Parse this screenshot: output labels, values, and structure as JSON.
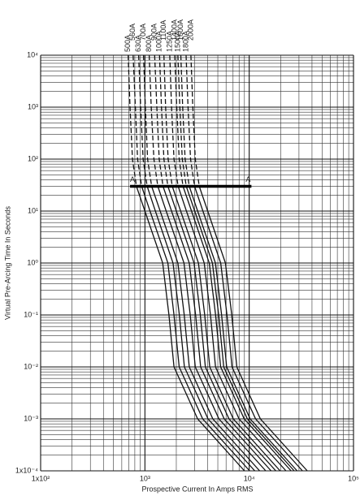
{
  "chart_data": {
    "type": "line",
    "x_label": "Prospective Current In Amps RMS",
    "y_label": "Virtual Pre-Arcing Time In Seconds",
    "x_log": true,
    "y_log": true,
    "grid": "major-minor",
    "color": "#111111",
    "xlim": [
      100,
      100000
    ],
    "xticks": [
      {
        "value": 100,
        "label": "1x10²"
      },
      {
        "value": 1000,
        "label": "10³"
      },
      {
        "value": 10000,
        "label": "10⁴"
      },
      {
        "value": 100000,
        "label": "10⁵"
      }
    ],
    "ylim": [
      0.0001,
      10000
    ],
    "yticks": [
      {
        "value": 0.0001,
        "label": "1x10⁻⁴"
      },
      {
        "value": 0.001,
        "label": "10⁻³"
      },
      {
        "value": 0.01,
        "label": "10⁻²"
      },
      {
        "value": 0.1,
        "label": "10⁻¹"
      },
      {
        "value": 1,
        "label": "10⁰"
      },
      {
        "value": 10,
        "label": "10¹"
      },
      {
        "value": 100,
        "label": "10²"
      },
      {
        "value": 1000,
        "label": "10³"
      },
      {
        "value": 10000,
        "label": "10⁴"
      }
    ],
    "reference_line": {
      "label": "A",
      "y": 30,
      "x": [
        720,
        10500
      ]
    },
    "series": [
      {
        "name": "500A",
        "x": [
          690,
          720,
          760,
          830,
          1000,
          1480,
          1700,
          1900,
          3200,
          9000
        ],
        "values": [
          10000,
          1000,
          100,
          30,
          10,
          1,
          0.1,
          0.01,
          0.001,
          0.0001
        ]
      },
      {
        "name": "560A",
        "x": [
          770,
          810,
          850,
          930,
          1120,
          1660,
          1900,
          2130,
          3580,
          10100
        ],
        "values": [
          10000,
          1000,
          100,
          30,
          10,
          1,
          0.1,
          0.01,
          0.001,
          0.0001
        ]
      },
      {
        "name": "630A",
        "x": [
          870,
          910,
          960,
          1050,
          1260,
          1860,
          2140,
          2390,
          4030,
          11300
        ],
        "values": [
          10000,
          1000,
          100,
          30,
          10,
          1,
          0.1,
          0.01,
          0.001,
          0.0001
        ]
      },
      {
        "name": "700A",
        "x": [
          970,
          1010,
          1060,
          1160,
          1400,
          2070,
          2380,
          2660,
          4480,
          12600
        ],
        "values": [
          10000,
          1000,
          100,
          30,
          10,
          1,
          0.1,
          0.01,
          0.001,
          0.0001
        ]
      },
      {
        "name": "800A",
        "x": [
          1100,
          1150,
          1220,
          1330,
          1600,
          2370,
          2720,
          3040,
          5120,
          14400
        ],
        "values": [
          10000,
          1000,
          100,
          30,
          10,
          1,
          0.1,
          0.01,
          0.001,
          0.0001
        ]
      },
      {
        "name": "900A",
        "x": [
          1240,
          1300,
          1370,
          1490,
          1800,
          2660,
          3060,
          3420,
          5760,
          16200
        ],
        "values": [
          10000,
          1000,
          100,
          30,
          10,
          1,
          0.1,
          0.01,
          0.001,
          0.0001
        ]
      },
      {
        "name": "1000A",
        "x": [
          1380,
          1440,
          1520,
          1660,
          2000,
          2960,
          3400,
          3800,
          6400,
          18000
        ],
        "values": [
          10000,
          1000,
          100,
          30,
          10,
          1,
          0.1,
          0.01,
          0.001,
          0.0001
        ]
      },
      {
        "name": "1100A",
        "x": [
          1520,
          1580,
          1670,
          1830,
          2200,
          3260,
          3740,
          4180,
          7040,
          19800
        ],
        "values": [
          10000,
          1000,
          100,
          30,
          10,
          1,
          0.1,
          0.01,
          0.001,
          0.0001
        ]
      },
      {
        "name": "1250A",
        "x": [
          1730,
          1800,
          1900,
          2080,
          2500,
          3700,
          4250,
          4750,
          8000,
          22500
        ],
        "values": [
          10000,
          1000,
          100,
          30,
          10,
          1,
          0.1,
          0.01,
          0.001,
          0.0001
        ]
      },
      {
        "name": "1400A",
        "x": [
          1930,
          2020,
          2130,
          2320,
          2800,
          4140,
          4760,
          5320,
          8960,
          25200
        ],
        "values": [
          10000,
          1000,
          100,
          30,
          10,
          1,
          0.1,
          0.01,
          0.001,
          0.0001
        ]
      },
      {
        "name": "1500A",
        "x": [
          2070,
          2160,
          2280,
          2490,
          3000,
          4440,
          5100,
          5700,
          9600,
          27000
        ],
        "values": [
          10000,
          1000,
          100,
          30,
          10,
          1,
          0.1,
          0.01,
          0.001,
          0.0001
        ]
      },
      {
        "name": "1600A",
        "x": [
          2210,
          2300,
          2430,
          2660,
          3200,
          4740,
          5440,
          6080,
          10200,
          28800
        ],
        "values": [
          10000,
          1000,
          100,
          30,
          10,
          1,
          0.1,
          0.01,
          0.001,
          0.0001
        ]
      },
      {
        "name": "1800A",
        "x": [
          2480,
          2590,
          2740,
          2990,
          3600,
          5330,
          6120,
          6840,
          11500,
          32400
        ],
        "values": [
          10000,
          1000,
          100,
          30,
          10,
          1,
          0.1,
          0.01,
          0.001,
          0.0001
        ]
      },
      {
        "name": "2000A",
        "x": [
          2760,
          2880,
          3040,
          3320,
          4000,
          5920,
          6800,
          7600,
          12800,
          36000
        ],
        "values": [
          10000,
          1000,
          100,
          30,
          10,
          1,
          0.1,
          0.01,
          0.001,
          0.0001
        ]
      }
    ]
  }
}
